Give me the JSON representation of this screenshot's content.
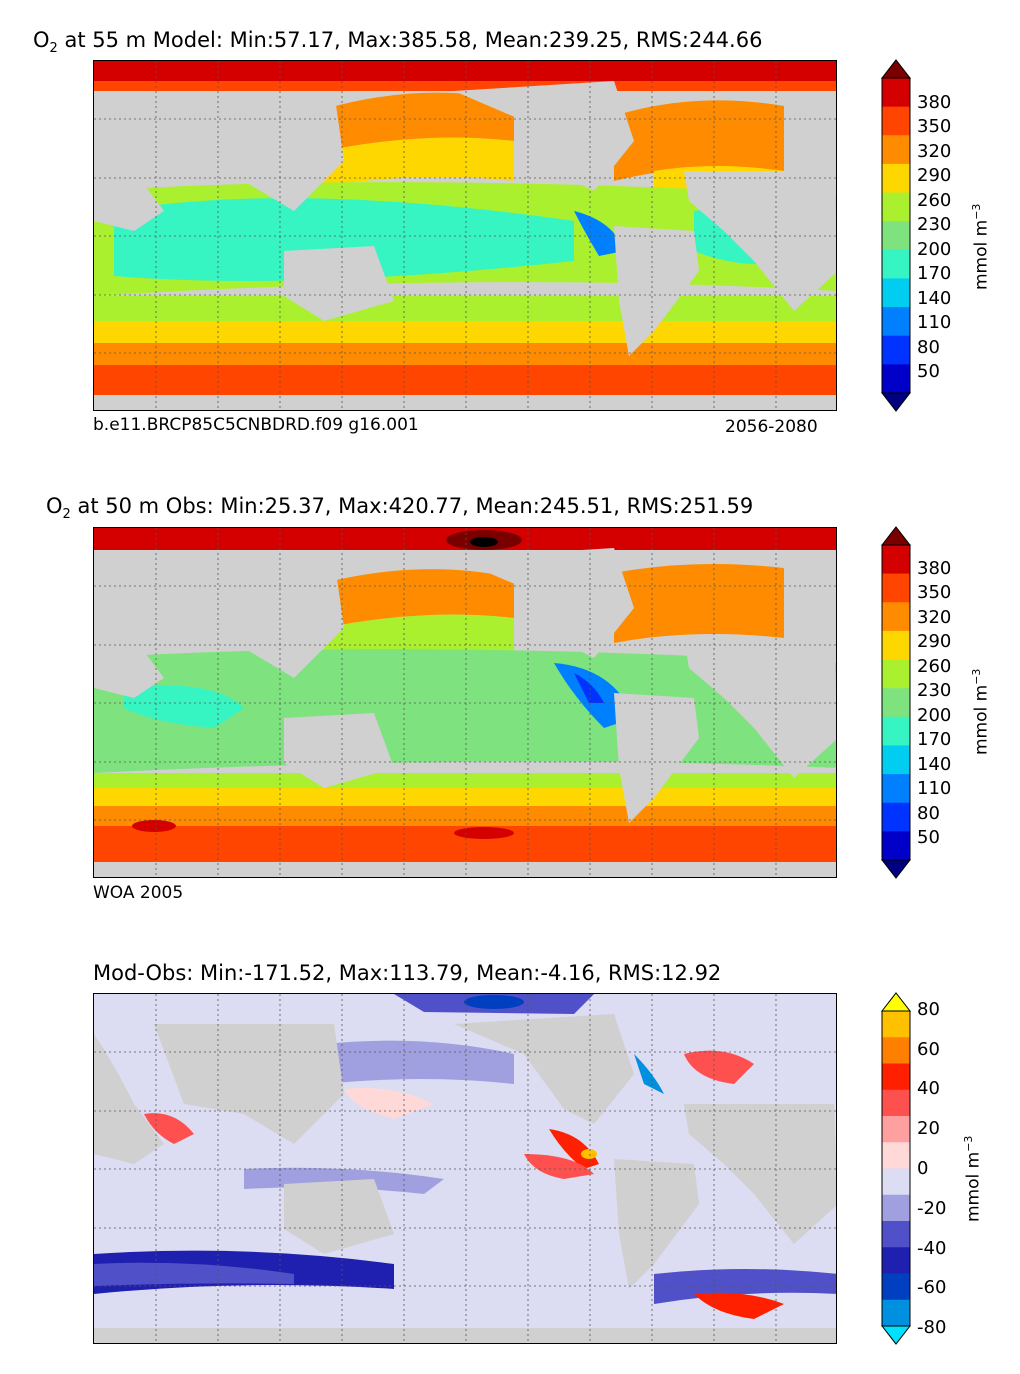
{
  "chart_data": [
    {
      "type": "heatmap",
      "species": "O",
      "species_sub": "2",
      "title_rest": " at 55 m Model: Min:57.17, Max:385.58, Mean:239.25, RMS:244.66",
      "caption_left": "b.e11.BRCP85C5CNBDRD.f09 g16.001",
      "caption_right": "2056-2080",
      "colorbar": {
        "ticks": [
          "380",
          "350",
          "320",
          "290",
          "260",
          "230",
          "200",
          "170",
          "140",
          "110",
          "80",
          "50"
        ],
        "unit": "mmol m",
        "unit_exp": "−3",
        "colors": [
          "#7a0000",
          "#d40000",
          "#ff4500",
          "#ff8c00",
          "#ffd700",
          "#aaf02e",
          "#7ee37e",
          "#36f5c2",
          "#00cdf0",
          "#0080ff",
          "#0033ff",
          "#0000c8",
          "#000080"
        ]
      },
      "stats": {
        "min": 57.17,
        "max": 385.58,
        "mean": 239.25,
        "rms": 244.66
      }
    },
    {
      "type": "heatmap",
      "species": "O",
      "species_sub": "2",
      "title_rest": " at 50 m Obs: Min:25.37, Max:420.77, Mean:245.51, RMS:251.59",
      "caption_left": "WOA 2005",
      "caption_right": "",
      "colorbar": {
        "ticks": [
          "380",
          "350",
          "320",
          "290",
          "260",
          "230",
          "200",
          "170",
          "140",
          "110",
          "80",
          "50"
        ],
        "unit": "mmol m",
        "unit_exp": "−3",
        "colors": [
          "#7a0000",
          "#d40000",
          "#ff4500",
          "#ff8c00",
          "#ffd700",
          "#aaf02e",
          "#7ee37e",
          "#36f5c2",
          "#00cdf0",
          "#0080ff",
          "#0033ff",
          "#0000c8",
          "#000080"
        ]
      },
      "stats": {
        "min": 25.37,
        "max": 420.77,
        "mean": 245.51,
        "rms": 251.59
      }
    },
    {
      "type": "heatmap",
      "species": "",
      "species_sub": "",
      "title_rest": "Mod-Obs: Min:-171.52, Max:113.79, Mean:-4.16, RMS:12.92",
      "caption_left": "",
      "caption_right": "",
      "colorbar": {
        "ticks": [
          "80",
          "60",
          "40",
          "20",
          "0",
          "-20",
          "-40",
          "-60",
          "-80"
        ],
        "unit": "mmol m",
        "unit_exp": "−3",
        "colors": [
          "#ffff00",
          "#ffc000",
          "#ff8000",
          "#ff2000",
          "#ff5050",
          "#ffa0a0",
          "#ffd8d8",
          "#dcdcf2",
          "#a0a0e0",
          "#5050c8",
          "#2020b0",
          "#0040c0",
          "#0090e0",
          "#00e0ff"
        ]
      },
      "stats": {
        "min": -171.52,
        "max": 113.79,
        "mean": -4.16,
        "rms": 12.92
      }
    }
  ]
}
